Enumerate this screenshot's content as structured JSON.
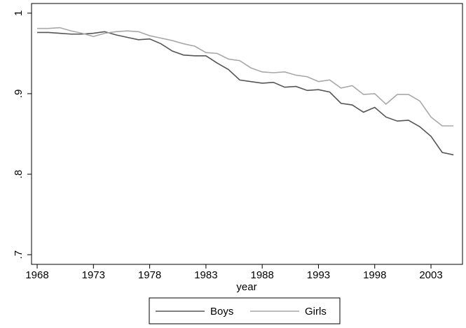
{
  "chart_data": {
    "type": "line",
    "x_label": "year",
    "x": [
      1968,
      1969,
      1970,
      1971,
      1972,
      1973,
      1974,
      1975,
      1976,
      1977,
      1978,
      1979,
      1980,
      1981,
      1982,
      1983,
      1984,
      1985,
      1986,
      1987,
      1988,
      1989,
      1990,
      1991,
      1992,
      1993,
      1994,
      1995,
      1996,
      1997,
      1998,
      1999,
      2000,
      2001,
      2002,
      2003,
      2004,
      2005
    ],
    "series": [
      {
        "name": "Boys",
        "color": "#555555",
        "values": [
          0.976,
          0.976,
          0.975,
          0.974,
          0.974,
          0.975,
          0.977,
          0.973,
          0.97,
          0.967,
          0.968,
          0.962,
          0.953,
          0.948,
          0.947,
          0.947,
          0.938,
          0.93,
          0.917,
          0.915,
          0.913,
          0.914,
          0.908,
          0.909,
          0.904,
          0.905,
          0.902,
          0.888,
          0.886,
          0.877,
          0.883,
          0.871,
          0.866,
          0.867,
          0.859,
          0.847,
          0.827,
          0.824
        ]
      },
      {
        "name": "Girls",
        "color": "#a8a8a8",
        "values": [
          0.981,
          0.981,
          0.982,
          0.978,
          0.975,
          0.971,
          0.975,
          0.977,
          0.978,
          0.977,
          0.972,
          0.969,
          0.966,
          0.962,
          0.959,
          0.951,
          0.95,
          0.943,
          0.941,
          0.932,
          0.927,
          0.926,
          0.927,
          0.923,
          0.921,
          0.915,
          0.917,
          0.907,
          0.91,
          0.899,
          0.9,
          0.887,
          0.899,
          0.899,
          0.891,
          0.871,
          0.86,
          0.86
        ]
      }
    ],
    "xlim": [
      1967.5,
      2005.8
    ],
    "xticks": [
      1968,
      1973,
      1978,
      1983,
      1988,
      1993,
      1998,
      2003
    ],
    "ylim": [
      0.688,
      1.012
    ],
    "yticks": [
      {
        "value": 0.7,
        "label": ".7"
      },
      {
        "value": 0.8,
        "label": ".8"
      },
      {
        "value": 0.9,
        "label": ".9"
      },
      1
    ],
    "grid": false,
    "legend": "bottom"
  }
}
